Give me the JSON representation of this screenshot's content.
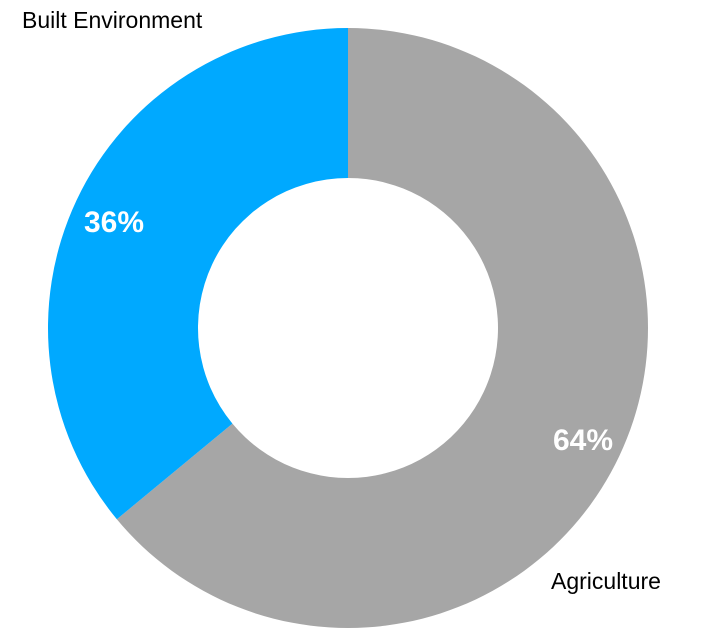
{
  "chart_data": {
    "type": "pie",
    "variant": "donut",
    "title": "",
    "slices": [
      {
        "label": "Agriculture",
        "value": 64,
        "display": "64%",
        "color": "#a6a6a6"
      },
      {
        "label": "Built Environment",
        "value": 36,
        "display": "36%",
        "color": "#00a9ff"
      }
    ],
    "start_angle_deg": 0,
    "direction": "clockwise",
    "legend": "none",
    "slice_borders": "none"
  }
}
